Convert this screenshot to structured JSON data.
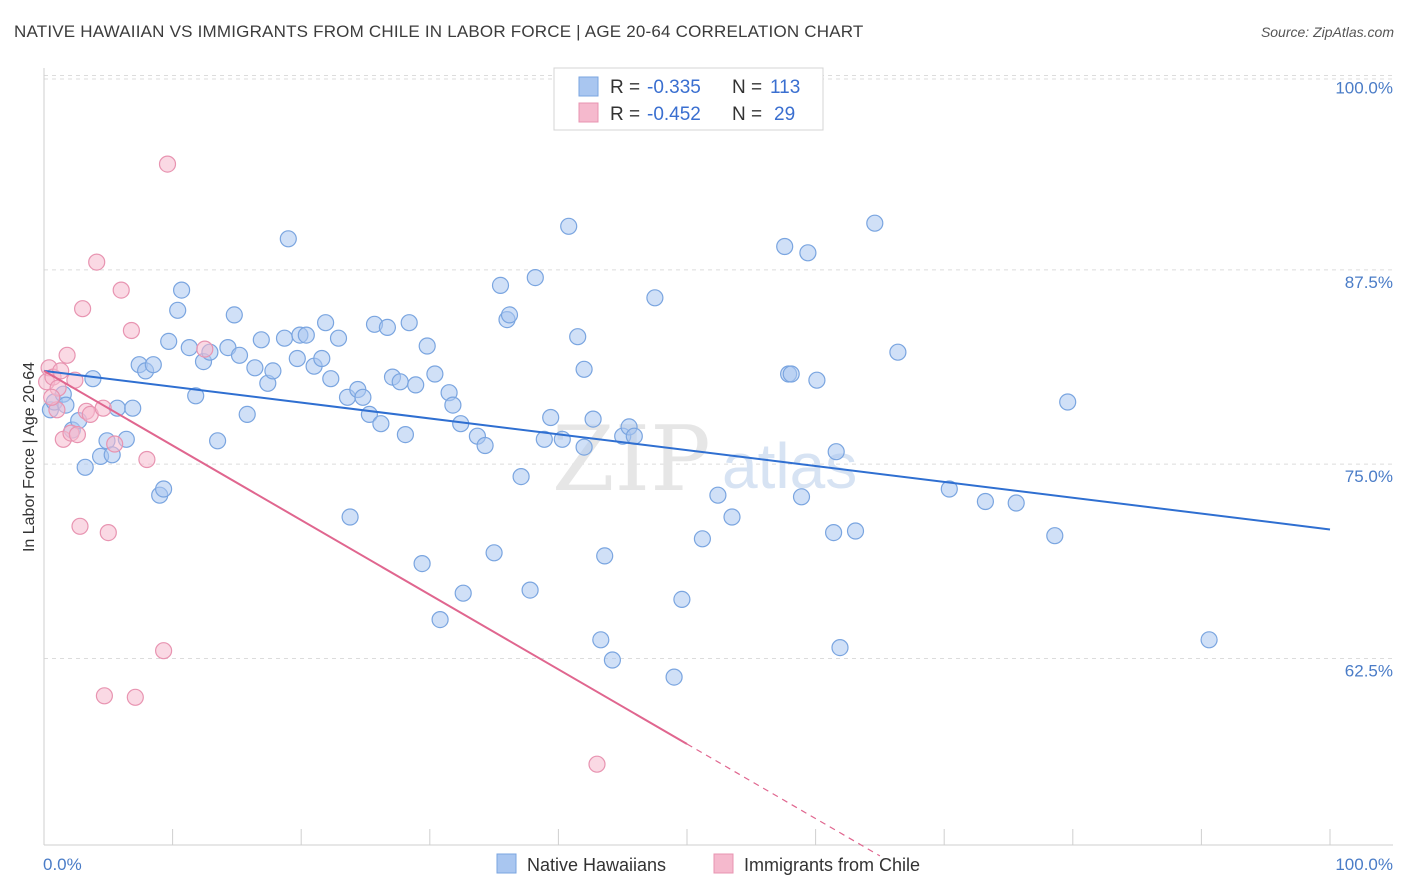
{
  "header": {
    "title": "NATIVE HAWAIIAN VS IMMIGRANTS FROM CHILE IN LABOR FORCE | AGE 20-64 CORRELATION CHART",
    "source": "Source: ZipAtlas.com"
  },
  "watermark": {
    "zip": "ZIP",
    "atlas": "atlas"
  },
  "legend": {
    "r_label": "R =",
    "n_label": "N =",
    "rows": [
      {
        "r": "-0.335",
        "n": "113",
        "color": "#a9c6f0"
      },
      {
        "r": "-0.452",
        "n": "29",
        "color": "#f5b9cd"
      }
    ]
  },
  "chart_data": {
    "type": "scatter",
    "title": "NATIVE HAWAIIAN VS IMMIGRANTS FROM CHILE IN LABOR FORCE | AGE 20-64 CORRELATION CHART",
    "xlabel": "",
    "ylabel": "In Labor Force | Age 20-64",
    "xlim": [
      0,
      100
    ],
    "ylim": [
      50.5,
      101
    ],
    "y_ticks": [
      {
        "value": 100,
        "label": "100.0%"
      },
      {
        "value": 87.5,
        "label": "87.5%"
      },
      {
        "value": 75,
        "label": "75.0%"
      },
      {
        "value": 62.5,
        "label": "62.5%"
      }
    ],
    "x_tick_labels": {
      "left": "0.0%",
      "right": "100.0%"
    },
    "grid": true,
    "series": [
      {
        "name": "Native Hawaiians",
        "color": "#a9c6f0",
        "stroke": "#7aa5e0",
        "trend": {
          "x0": 0,
          "y0": 81.0,
          "x1": 100,
          "y1": 70.8,
          "color": "#2f6fd1"
        },
        "points": [
          [
            0.5,
            78.5
          ],
          [
            0.8,
            79.0
          ],
          [
            1.5,
            79.5
          ],
          [
            1.7,
            78.8
          ],
          [
            2.2,
            77.2
          ],
          [
            2.7,
            77.8
          ],
          [
            3.2,
            74.8
          ],
          [
            3.8,
            80.5
          ],
          [
            4.4,
            75.5
          ],
          [
            4.9,
            76.5
          ],
          [
            5.3,
            75.6
          ],
          [
            5.7,
            78.6
          ],
          [
            6.4,
            76.6
          ],
          [
            6.9,
            78.6
          ],
          [
            7.4,
            81.4
          ],
          [
            7.9,
            81.0
          ],
          [
            8.5,
            81.4
          ],
          [
            9.0,
            73.0
          ],
          [
            9.3,
            73.4
          ],
          [
            9.7,
            82.9
          ],
          [
            10.4,
            84.9
          ],
          [
            10.7,
            86.2
          ],
          [
            11.3,
            82.5
          ],
          [
            11.8,
            79.4
          ],
          [
            12.4,
            81.6
          ],
          [
            12.9,
            82.2
          ],
          [
            13.5,
            76.5
          ],
          [
            14.3,
            82.5
          ],
          [
            14.8,
            84.6
          ],
          [
            15.2,
            82.0
          ],
          [
            15.8,
            78.2
          ],
          [
            16.4,
            81.2
          ],
          [
            16.9,
            83.0
          ],
          [
            17.4,
            80.2
          ],
          [
            17.8,
            81.0
          ],
          [
            18.7,
            83.1
          ],
          [
            19.0,
            89.5
          ],
          [
            19.7,
            81.8
          ],
          [
            19.9,
            83.3
          ],
          [
            20.4,
            83.3
          ],
          [
            21.0,
            81.3
          ],
          [
            21.6,
            81.8
          ],
          [
            21.9,
            84.1
          ],
          [
            22.3,
            80.5
          ],
          [
            22.9,
            83.1
          ],
          [
            23.6,
            79.3
          ],
          [
            23.8,
            71.6
          ],
          [
            24.4,
            79.8
          ],
          [
            24.8,
            79.3
          ],
          [
            25.3,
            78.2
          ],
          [
            25.7,
            84.0
          ],
          [
            26.2,
            77.6
          ],
          [
            26.7,
            83.8
          ],
          [
            27.1,
            80.6
          ],
          [
            27.7,
            80.3
          ],
          [
            28.1,
            76.9
          ],
          [
            28.4,
            84.1
          ],
          [
            28.9,
            80.1
          ],
          [
            29.4,
            68.6
          ],
          [
            29.8,
            82.6
          ],
          [
            30.4,
            80.8
          ],
          [
            30.8,
            65.0
          ],
          [
            31.5,
            79.6
          ],
          [
            31.8,
            78.8
          ],
          [
            32.4,
            77.6
          ],
          [
            32.6,
            66.7
          ],
          [
            33.7,
            76.8
          ],
          [
            34.3,
            76.2
          ],
          [
            35.0,
            69.3
          ],
          [
            35.5,
            86.5
          ],
          [
            36.0,
            84.3
          ],
          [
            36.2,
            84.6
          ],
          [
            37.1,
            74.2
          ],
          [
            37.8,
            66.9
          ],
          [
            38.2,
            87.0
          ],
          [
            38.9,
            76.6
          ],
          [
            39.4,
            78.0
          ],
          [
            40.3,
            76.6
          ],
          [
            40.8,
            90.3
          ],
          [
            41.5,
            83.2
          ],
          [
            42.0,
            81.1
          ],
          [
            42.0,
            76.1
          ],
          [
            42.7,
            77.9
          ],
          [
            43.3,
            63.7
          ],
          [
            43.6,
            69.1
          ],
          [
            44.2,
            62.4
          ],
          [
            45.0,
            76.8
          ],
          [
            45.5,
            77.4
          ],
          [
            45.9,
            76.8
          ],
          [
            47.5,
            85.7
          ],
          [
            49.0,
            61.3
          ],
          [
            49.6,
            66.3
          ],
          [
            51.2,
            70.2
          ],
          [
            52.4,
            73.0
          ],
          [
            53.5,
            71.6
          ],
          [
            57.6,
            89.0
          ],
          [
            57.9,
            80.8
          ],
          [
            58.1,
            80.8
          ],
          [
            58.9,
            72.9
          ],
          [
            59.4,
            88.6
          ],
          [
            60.1,
            80.4
          ],
          [
            61.4,
            70.6
          ],
          [
            61.6,
            75.8
          ],
          [
            61.9,
            63.2
          ],
          [
            63.1,
            70.7
          ],
          [
            64.6,
            90.5
          ],
          [
            66.4,
            82.2
          ],
          [
            70.4,
            73.4
          ],
          [
            73.2,
            72.6
          ],
          [
            75.6,
            72.5
          ],
          [
            78.6,
            70.4
          ],
          [
            79.6,
            79.0
          ],
          [
            90.6,
            63.7
          ]
        ]
      },
      {
        "name": "Immigrants from Chile",
        "color": "#f5b9cd",
        "stroke": "#e894b1",
        "trend": {
          "x0": 0,
          "y0": 81.0,
          "x1": 50,
          "y1": 57.0,
          "color": "#e0668f",
          "dash_to": {
            "x": 65,
            "y": 49.8
          }
        },
        "points": [
          [
            0.2,
            80.3
          ],
          [
            0.4,
            81.2
          ],
          [
            0.7,
            80.6
          ],
          [
            1.1,
            79.9
          ],
          [
            1.3,
            81.0
          ],
          [
            1.5,
            76.6
          ],
          [
            1.8,
            82.0
          ],
          [
            2.1,
            77.0
          ],
          [
            2.4,
            80.4
          ],
          [
            2.6,
            76.9
          ],
          [
            2.8,
            71.0
          ],
          [
            3.0,
            85.0
          ],
          [
            3.3,
            78.4
          ],
          [
            3.6,
            78.2
          ],
          [
            4.1,
            88.0
          ],
          [
            4.6,
            78.6
          ],
          [
            5.0,
            70.6
          ],
          [
            5.5,
            76.3
          ],
          [
            6.0,
            86.2
          ],
          [
            6.8,
            83.6
          ],
          [
            7.1,
            60.0
          ],
          [
            8.0,
            75.3
          ],
          [
            9.3,
            63.0
          ],
          [
            9.6,
            94.3
          ],
          [
            12.5,
            82.4
          ],
          [
            4.7,
            60.1
          ],
          [
            1.0,
            78.5
          ],
          [
            0.6,
            79.3
          ],
          [
            43.0,
            55.7
          ]
        ]
      }
    ]
  },
  "bottom_legend": {
    "items": [
      {
        "label": "Native Hawaiians",
        "color": "#a9c6f0"
      },
      {
        "label": "Immigrants from Chile",
        "color": "#f5b9cd"
      }
    ]
  }
}
